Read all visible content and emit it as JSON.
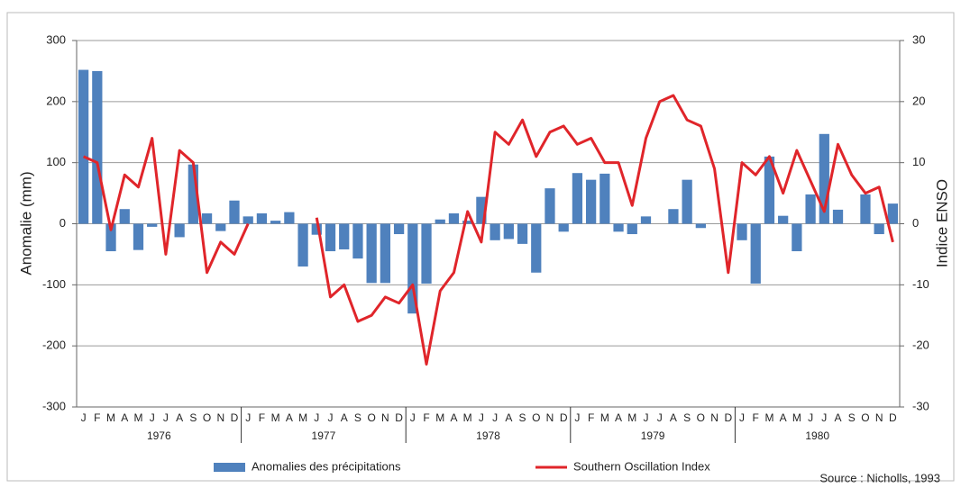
{
  "chart_data": {
    "type": "bar-line",
    "y_label": "Anomalie (mm)",
    "y2_label": "Indice ENSO",
    "source": "Source : Nicholls, 1993",
    "categories": [
      "J",
      "F",
      "M",
      "A",
      "M",
      "J",
      "J",
      "A",
      "S",
      "O",
      "N",
      "D",
      "J",
      "F",
      "M",
      "A",
      "M",
      "J",
      "J",
      "A",
      "S",
      "O",
      "N",
      "D",
      "J",
      "F",
      "M",
      "A",
      "M",
      "J",
      "J",
      "A",
      "S",
      "O",
      "N",
      "D",
      "J",
      "F",
      "M",
      "A",
      "M",
      "J",
      "J",
      "A",
      "S",
      "O",
      "N",
      "D",
      "J",
      "F",
      "M",
      "A",
      "M",
      "J",
      "J",
      "A",
      "S",
      "O",
      "N",
      "D"
    ],
    "years": [
      "1976",
      "1977",
      "1978",
      "1979",
      "1980"
    ],
    "series": [
      {
        "name": "Anomalies des précipitations",
        "type": "bar",
        "color": "#4f81bd",
        "axis": "y",
        "values": [
          252,
          250,
          -45,
          24,
          -43,
          -5,
          0,
          -22,
          97,
          17,
          -12,
          38,
          12,
          17,
          5,
          19,
          -70,
          -18,
          -45,
          -42,
          -57,
          -97,
          -97,
          -17,
          -147,
          -98,
          7,
          17,
          5,
          44,
          -27,
          -25,
          -33,
          -80,
          58,
          -13,
          83,
          72,
          82,
          -13,
          -17,
          12,
          0,
          24,
          72,
          -7,
          0,
          0,
          -27,
          -98,
          110,
          13,
          -45,
          48,
          147,
          23,
          0,
          48,
          -17,
          33
        ]
      },
      {
        "name": "Southern Oscillation Index",
        "type": "line",
        "color": "#e0252a",
        "axis": "y2",
        "values": [
          11,
          10,
          -1,
          8,
          6,
          14,
          -5,
          12,
          10,
          -8,
          -3,
          -5,
          0,
          null,
          null,
          null,
          null,
          1,
          -12,
          -10,
          -16,
          -15,
          -12,
          -13,
          -10,
          -23,
          -11,
          -8,
          2,
          -3,
          15,
          13,
          17,
          11,
          15,
          16,
          13,
          14,
          10,
          10,
          3,
          14,
          20,
          21,
          17,
          16,
          9,
          -8,
          10,
          8,
          11,
          5,
          12,
          7,
          2,
          13,
          8,
          5,
          6,
          -3
        ]
      }
    ],
    "ylim": [
      -300,
      300
    ],
    "yticks": [
      -300,
      -200,
      -100,
      0,
      100,
      200,
      300
    ],
    "y2lim": [
      -30,
      30
    ],
    "y2ticks": [
      -30,
      -20,
      -10,
      0,
      10,
      20,
      30
    ],
    "grid": true
  }
}
